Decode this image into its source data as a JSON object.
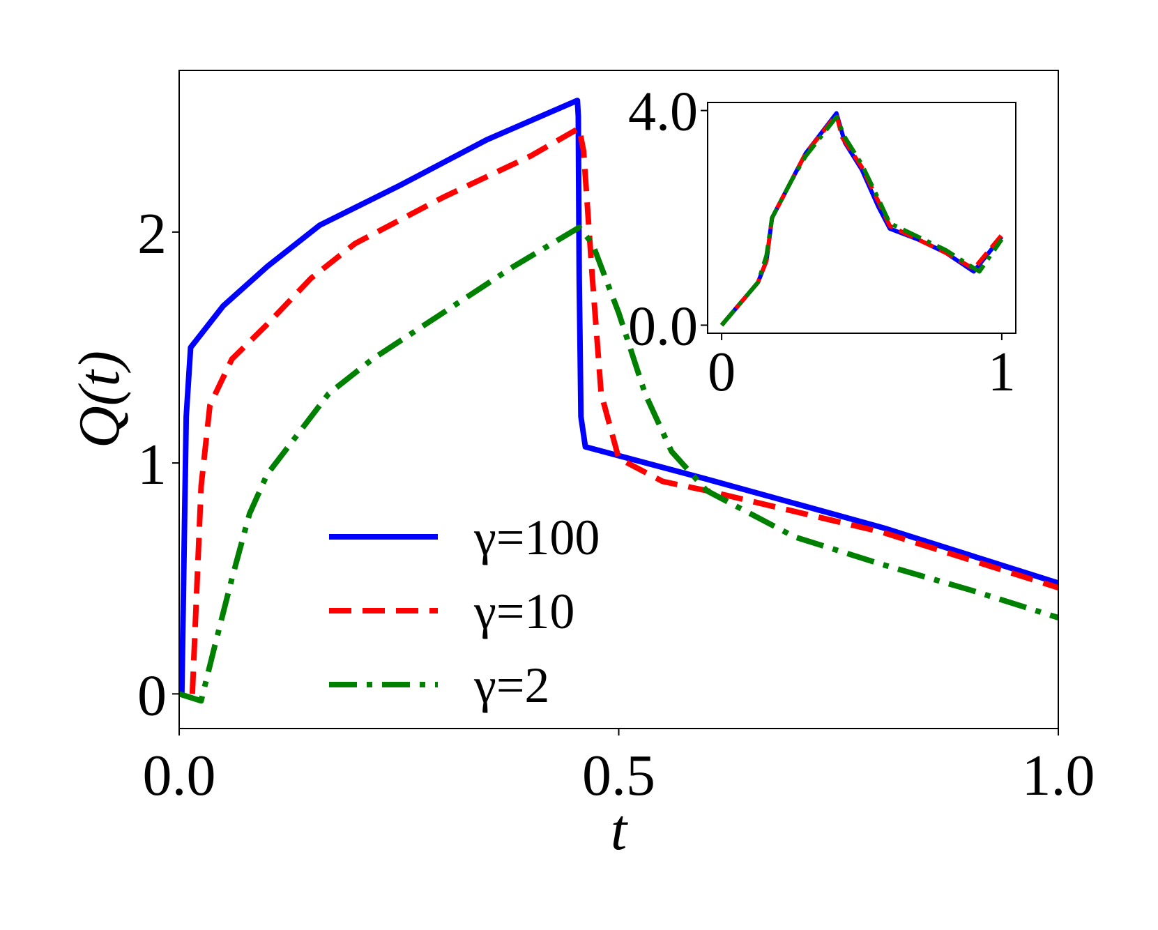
{
  "chart_data": {
    "type": "line",
    "xlabel": "t",
    "ylabel": "Q(t)",
    "xlim": [
      0.0,
      1.0
    ],
    "ylim": [
      -0.15,
      2.7
    ],
    "xticks": [
      {
        "value": 0.0,
        "label": "0.0"
      },
      {
        "value": 0.5,
        "label": "0.5"
      },
      {
        "value": 1.0,
        "label": "1.0"
      }
    ],
    "yticks": [
      {
        "value": 0,
        "label": "0"
      },
      {
        "value": 1,
        "label": "1"
      },
      {
        "value": 2,
        "label": "2"
      }
    ],
    "grid": false,
    "legend": {
      "placement": "lower-center"
    },
    "series": [
      {
        "name": "γ=100",
        "color": "#0000ff",
        "style": "solid",
        "points": [
          [
            0.003,
            0.0
          ],
          [
            0.008,
            1.2
          ],
          [
            0.013,
            1.5
          ],
          [
            0.05,
            1.68
          ],
          [
            0.1,
            1.85
          ],
          [
            0.16,
            2.03
          ],
          [
            0.25,
            2.2
          ],
          [
            0.35,
            2.4
          ],
          [
            0.453,
            2.57
          ],
          [
            0.454,
            2.5
          ],
          [
            0.455,
            1.8
          ],
          [
            0.457,
            1.2
          ],
          [
            0.462,
            1.07
          ],
          [
            0.6,
            0.93
          ],
          [
            0.8,
            0.72
          ],
          [
            1.0,
            0.48
          ]
        ]
      },
      {
        "name": "γ=10",
        "color": "#ff0000",
        "style": "dashed",
        "points": [
          [
            0.015,
            0.0
          ],
          [
            0.025,
            0.9
          ],
          [
            0.035,
            1.25
          ],
          [
            0.06,
            1.45
          ],
          [
            0.1,
            1.6
          ],
          [
            0.15,
            1.8
          ],
          [
            0.2,
            1.95
          ],
          [
            0.3,
            2.15
          ],
          [
            0.4,
            2.33
          ],
          [
            0.455,
            2.45
          ],
          [
            0.46,
            2.35
          ],
          [
            0.47,
            1.8
          ],
          [
            0.48,
            1.3
          ],
          [
            0.5,
            1.02
          ],
          [
            0.55,
            0.92
          ],
          [
            0.6,
            0.88
          ],
          [
            0.8,
            0.7
          ],
          [
            1.0,
            0.46
          ]
        ]
      },
      {
        "name": "γ=2",
        "color": "#008000",
        "style": "dashdot",
        "points": [
          [
            0.0,
            0.0
          ],
          [
            0.025,
            -0.03
          ],
          [
            0.04,
            0.2
          ],
          [
            0.06,
            0.5
          ],
          [
            0.08,
            0.78
          ],
          [
            0.1,
            0.95
          ],
          [
            0.13,
            1.1
          ],
          [
            0.17,
            1.3
          ],
          [
            0.22,
            1.45
          ],
          [
            0.3,
            1.65
          ],
          [
            0.38,
            1.85
          ],
          [
            0.455,
            2.02
          ],
          [
            0.47,
            1.95
          ],
          [
            0.5,
            1.65
          ],
          [
            0.53,
            1.3
          ],
          [
            0.56,
            1.05
          ],
          [
            0.6,
            0.88
          ],
          [
            0.7,
            0.68
          ],
          [
            0.8,
            0.56
          ],
          [
            0.9,
            0.45
          ],
          [
            1.0,
            0.33
          ]
        ]
      }
    ],
    "inset": {
      "type": "line",
      "xlim": [
        -0.05,
        1.05
      ],
      "ylim": [
        -0.15,
        4.15
      ],
      "xticks": [
        {
          "value": 0,
          "label": "0"
        },
        {
          "value": 1,
          "label": "1"
        }
      ],
      "yticks": [
        {
          "value": 0.0,
          "label": "0.0"
        },
        {
          "value": 4.0,
          "label": "4.0"
        }
      ],
      "series": [
        {
          "color": "#0000ff",
          "style": "solid",
          "points": [
            [
              0.0,
              0.0
            ],
            [
              0.13,
              0.8
            ],
            [
              0.16,
              1.2
            ],
            [
              0.18,
              2.0
            ],
            [
              0.25,
              2.7
            ],
            [
              0.3,
              3.2
            ],
            [
              0.41,
              3.95
            ],
            [
              0.44,
              3.4
            ],
            [
              0.5,
              2.9
            ],
            [
              0.56,
              2.2
            ],
            [
              0.6,
              1.8
            ],
            [
              0.7,
              1.6
            ],
            [
              0.8,
              1.35
            ],
            [
              0.9,
              1.0
            ],
            [
              1.0,
              1.65
            ]
          ]
        },
        {
          "color": "#ff0000",
          "style": "dashed",
          "points": [
            [
              0.0,
              0.0
            ],
            [
              0.13,
              0.8
            ],
            [
              0.16,
              1.2
            ],
            [
              0.18,
              2.0
            ],
            [
              0.25,
              2.7
            ],
            [
              0.3,
              3.2
            ],
            [
              0.41,
              3.92
            ],
            [
              0.43,
              3.5
            ],
            [
              0.5,
              2.95
            ],
            [
              0.56,
              2.3
            ],
            [
              0.6,
              1.85
            ],
            [
              0.7,
              1.6
            ],
            [
              0.8,
              1.35
            ],
            [
              0.9,
              1.05
            ],
            [
              1.0,
              1.68
            ]
          ]
        },
        {
          "color": "#008000",
          "style": "dashdot",
          "points": [
            [
              0.0,
              0.0
            ],
            [
              0.13,
              0.8
            ],
            [
              0.16,
              1.3
            ],
            [
              0.18,
              2.0
            ],
            [
              0.25,
              2.7
            ],
            [
              0.3,
              3.15
            ],
            [
              0.41,
              3.88
            ],
            [
              0.44,
              3.5
            ],
            [
              0.5,
              3.0
            ],
            [
              0.56,
              2.35
            ],
            [
              0.6,
              1.9
            ],
            [
              0.7,
              1.65
            ],
            [
              0.8,
              1.4
            ],
            [
              0.92,
              1.0
            ],
            [
              1.0,
              1.6
            ]
          ]
        }
      ]
    }
  }
}
